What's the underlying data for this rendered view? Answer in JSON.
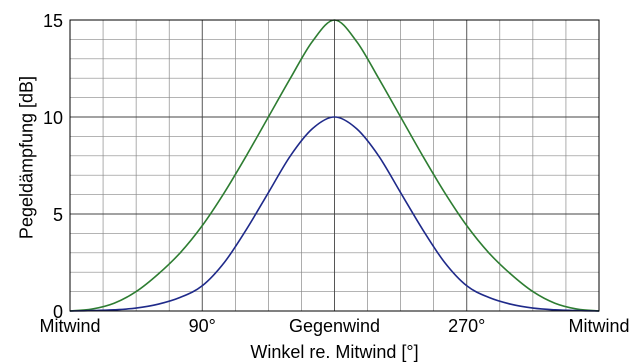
{
  "chart_data": {
    "type": "line",
    "title": "",
    "xlabel": "Winkel re. Mitwind [°]",
    "ylabel": "Pegeldämpfung [dB]",
    "xlim": [
      0,
      360
    ],
    "ylim": [
      0,
      15
    ],
    "grid": true,
    "x_ticks": [
      {
        "value": 0,
        "label": "Mitwind"
      },
      {
        "value": 90,
        "label": "90°"
      },
      {
        "value": 180,
        "label": "Gegenwind"
      },
      {
        "value": 270,
        "label": "270°"
      },
      {
        "value": 360,
        "label": "Mitwind"
      }
    ],
    "y_ticks": [
      {
        "value": 0,
        "label": "0"
      },
      {
        "value": 5,
        "label": "5"
      },
      {
        "value": 10,
        "label": "10"
      },
      {
        "value": 15,
        "label": "15"
      }
    ],
    "x": [
      0,
      15,
      30,
      45,
      60,
      75,
      90,
      105,
      120,
      135,
      150,
      165,
      180,
      195,
      210,
      225,
      240,
      255,
      270,
      285,
      300,
      315,
      330,
      345,
      360
    ],
    "series": [
      {
        "color": "#2e7d32",
        "values": [
          0,
          0.1,
          0.4,
          1.0,
          1.9,
          3.0,
          4.4,
          6.1,
          8.0,
          10.0,
          12.0,
          13.9,
          15.0,
          13.9,
          12.0,
          10.0,
          8.0,
          6.1,
          4.4,
          3.0,
          1.9,
          1.0,
          0.4,
          0.1,
          0
        ]
      },
      {
        "color": "#1f2a8a",
        "values": [
          0,
          0.02,
          0.06,
          0.15,
          0.35,
          0.7,
          1.3,
          2.5,
          4.2,
          6.1,
          8.0,
          9.4,
          10.0,
          9.4,
          8.0,
          6.1,
          4.2,
          2.5,
          1.3,
          0.7,
          0.35,
          0.15,
          0.06,
          0.02,
          0
        ]
      }
    ]
  }
}
